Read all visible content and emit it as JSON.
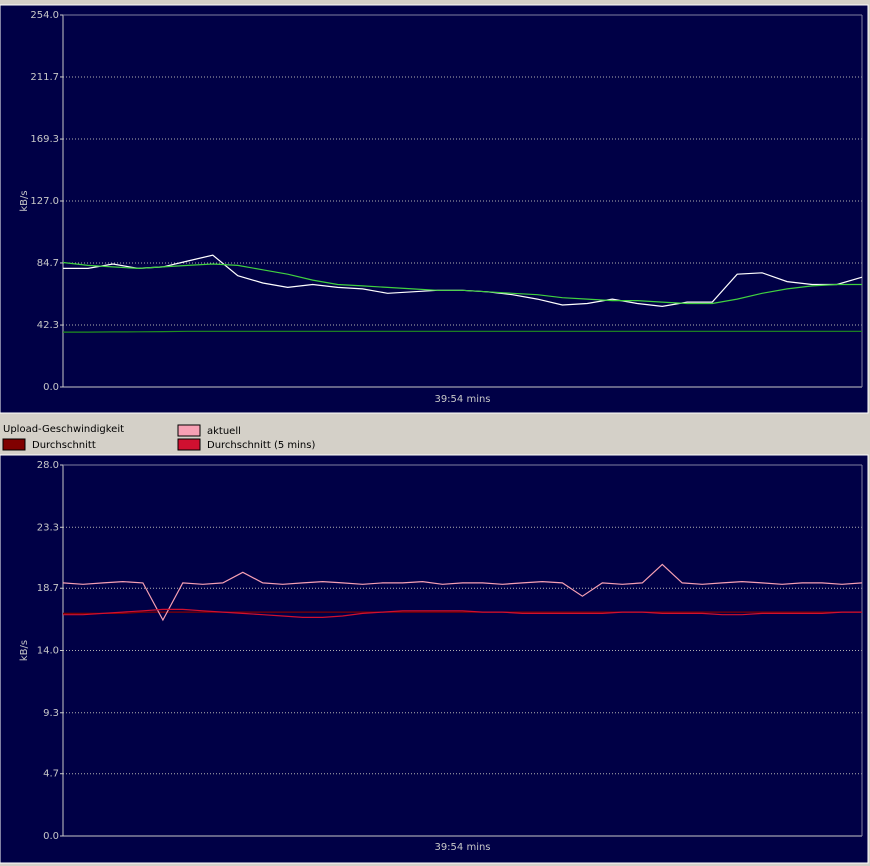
{
  "chart_data": [
    {
      "type": "line",
      "y_label": "kB/s",
      "x_label": "39:54 mins",
      "ylim": [
        0,
        254
      ],
      "yticks": [
        {
          "value": 0,
          "label": "0.0"
        },
        42.3,
        84.7,
        {
          "value": 127,
          "label": "127.0"
        },
        169.3,
        211.7,
        {
          "value": 254,
          "label": "254.0"
        }
      ],
      "grid": true,
      "series": [
        {
          "color": "#ffffff",
          "values": [
            81,
            81,
            84,
            81,
            82,
            86,
            90,
            76,
            71,
            68,
            70,
            68,
            67,
            64,
            65,
            66,
            66,
            65,
            63,
            60,
            56,
            57,
            60,
            57,
            55,
            58,
            58,
            77,
            78,
            72,
            70,
            70,
            75
          ]
        },
        {
          "color": "#40d040",
          "values": [
            85,
            83,
            82,
            81,
            82,
            83,
            84,
            83,
            80,
            77,
            73,
            70,
            69,
            68,
            67,
            66,
            66,
            65,
            64,
            63,
            61,
            60,
            59,
            59,
            58,
            57,
            57,
            60,
            64,
            67,
            69,
            70,
            70
          ]
        },
        {
          "color": "#1f8f1f",
          "values": [
            37.5,
            37.5,
            37.6,
            37.7,
            37.8,
            38,
            38,
            38,
            38,
            38,
            38,
            38,
            38,
            38,
            38,
            38,
            38,
            38,
            38,
            38,
            38,
            38,
            38,
            38,
            38,
            38,
            38,
            38,
            38,
            38,
            38,
            38,
            38
          ]
        }
      ]
    },
    {
      "type": "line",
      "y_label": "kB/s",
      "x_label": "39:54 mins",
      "legend_title": "Upload-Geschwindigkeit",
      "ylim": [
        0,
        28
      ],
      "yticks": [
        {
          "value": 0,
          "label": "0.0"
        },
        4.7,
        9.3,
        {
          "value": 14,
          "label": "14.0"
        },
        18.7,
        23.3,
        {
          "value": 28,
          "label": "28.0"
        }
      ],
      "grid": true,
      "series": [
        {
          "name": "Durchschnitt",
          "color": "#800000",
          "values": [
            16.8,
            16.8,
            16.8,
            16.8,
            16.9,
            16.9,
            16.9,
            16.9,
            16.9,
            16.9,
            16.9,
            16.9,
            16.9,
            16.9,
            16.9,
            16.9,
            16.9,
            16.9,
            16.9,
            16.9,
            16.9,
            16.9,
            16.9,
            16.9,
            16.9,
            16.9,
            16.9,
            16.9,
            16.9,
            16.9,
            16.9,
            16.9,
            16.9,
            16.9,
            16.9,
            16.9,
            16.9,
            16.9,
            16.9,
            16.9,
            16.9
          ]
        },
        {
          "name": "aktuell",
          "color": "#f7a0b4",
          "values": [
            19.1,
            19.0,
            19.1,
            19.2,
            19.1,
            16.3,
            19.1,
            19.0,
            19.1,
            19.9,
            19.1,
            19.0,
            19.1,
            19.2,
            19.1,
            19.0,
            19.1,
            19.1,
            19.2,
            19.0,
            19.1,
            19.1,
            19.0,
            19.1,
            19.2,
            19.1,
            18.1,
            19.1,
            19.0,
            19.1,
            20.5,
            19.1,
            19.0,
            19.1,
            19.2,
            19.1,
            19.0,
            19.1,
            19.1,
            19.0,
            19.1
          ]
        },
        {
          "name": "Durchschnitt (5 mins)",
          "color": "#d01030",
          "values": [
            16.7,
            16.7,
            16.8,
            16.9,
            17.0,
            17.1,
            17.1,
            17.0,
            16.9,
            16.8,
            16.7,
            16.6,
            16.5,
            16.5,
            16.6,
            16.8,
            16.9,
            17.0,
            17.0,
            17.0,
            17.0,
            16.9,
            16.9,
            16.8,
            16.8,
            16.8,
            16.8,
            16.8,
            16.9,
            16.9,
            16.8,
            16.8,
            16.8,
            16.7,
            16.7,
            16.8,
            16.8,
            16.8,
            16.8,
            16.9,
            16.9
          ]
        }
      ]
    }
  ]
}
